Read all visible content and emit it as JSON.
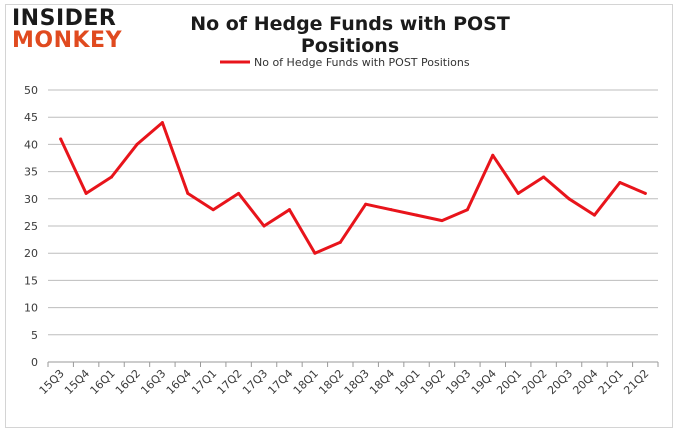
{
  "logo": {
    "line1": "INSIDER",
    "line2": "MONKEY"
  },
  "chart_data": {
    "type": "line",
    "title": "No of Hedge Funds with POST Positions",
    "xlabel": "",
    "ylabel": "",
    "legend_position": "top-center",
    "grid": true,
    "ylim": [
      0,
      50
    ],
    "yticks": [
      0,
      5,
      10,
      15,
      20,
      25,
      30,
      35,
      40,
      45,
      50
    ],
    "categories": [
      "15Q3",
      "15Q4",
      "16Q1",
      "16Q2",
      "16Q3",
      "16Q4",
      "17Q1",
      "17Q2",
      "17Q3",
      "17Q4",
      "18Q1",
      "18Q2",
      "18Q3",
      "18Q4",
      "19Q1",
      "19Q2",
      "19Q3",
      "19Q4",
      "20Q1",
      "20Q2",
      "20Q3",
      "20Q4",
      "21Q1",
      "21Q2"
    ],
    "series": [
      {
        "name": "No of Hedge Funds with POST Positions",
        "color": "#e8141b",
        "values": [
          41,
          31,
          34,
          40,
          44,
          31,
          28,
          31,
          25,
          28,
          20,
          22,
          29,
          28,
          27,
          26,
          28,
          38,
          31,
          34,
          30,
          27,
          33,
          31
        ]
      }
    ]
  }
}
